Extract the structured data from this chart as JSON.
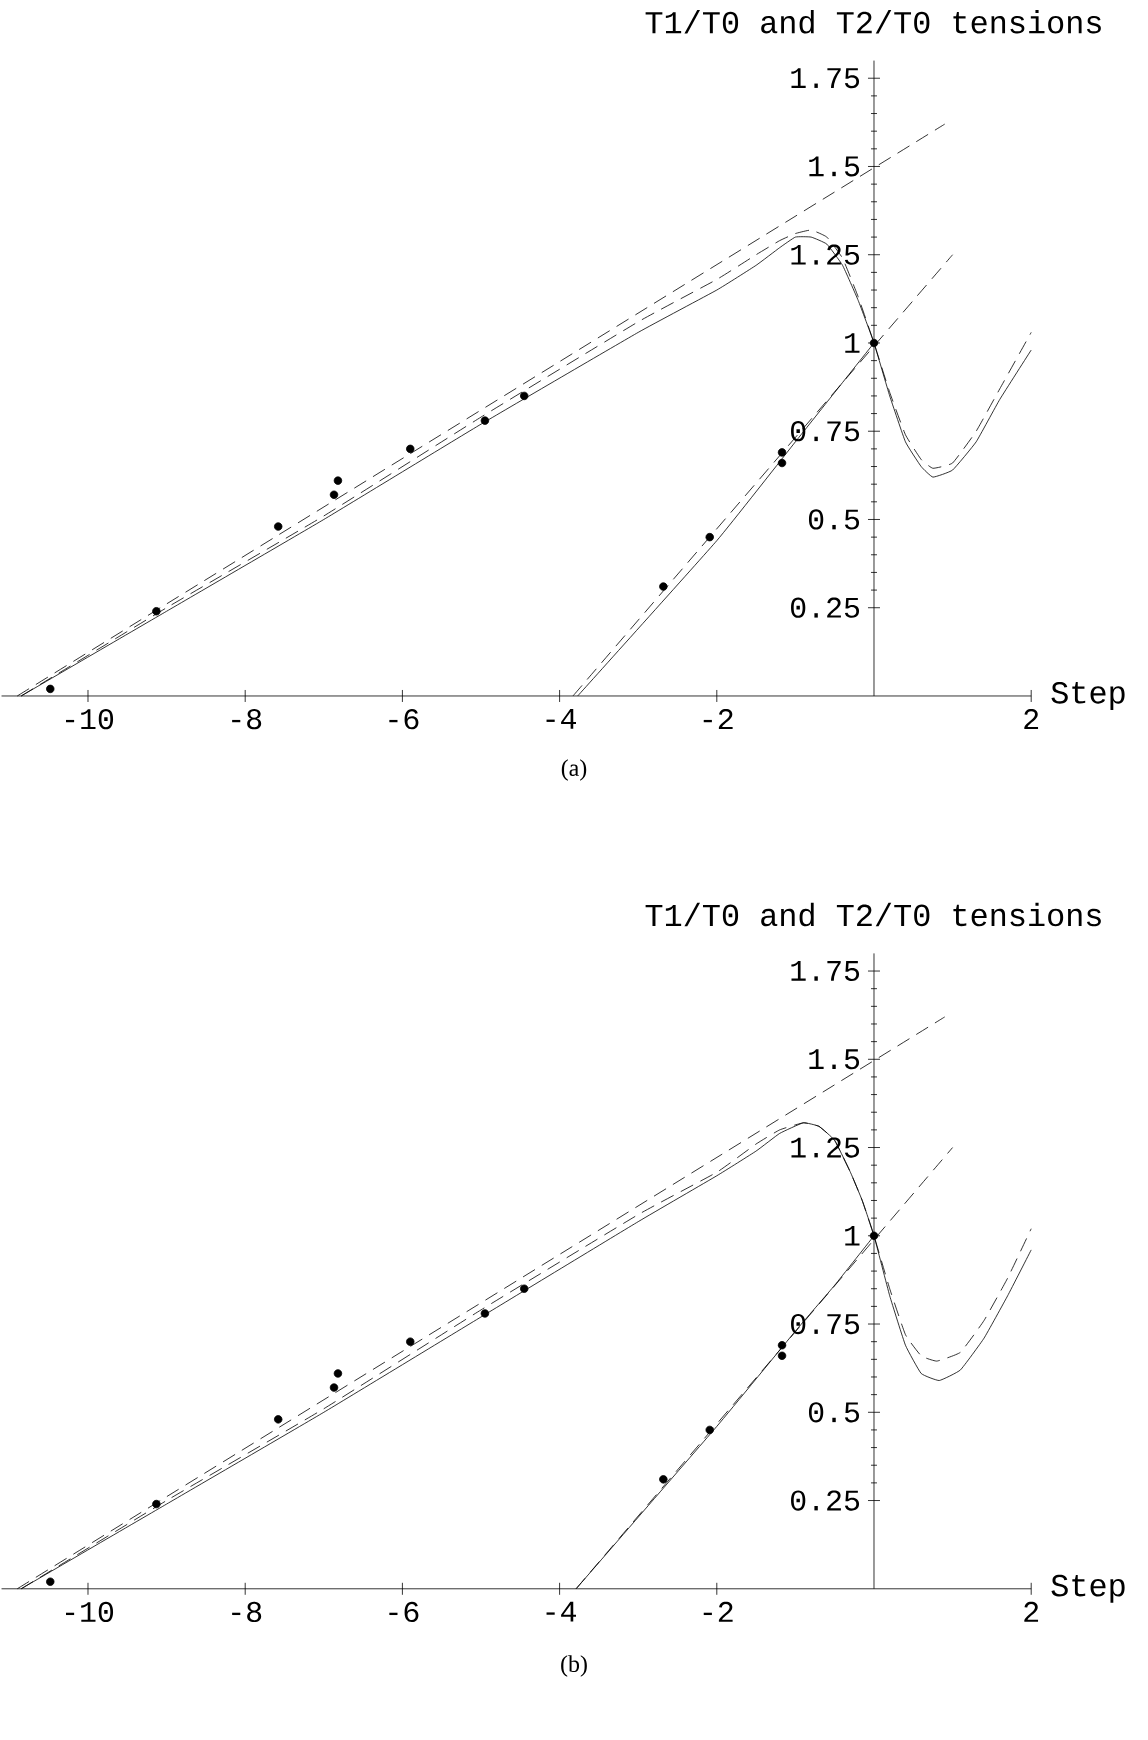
{
  "chart_data": [
    {
      "type": "line",
      "ylabel": "T1/T0 and T2/T0 tensions",
      "xlabel": "Step",
      "annotations": [
        "(a)"
      ],
      "xlim": [
        -11.1,
        2
      ],
      "ylim": [
        0,
        1.8
      ],
      "xticks": [
        -10,
        -8,
        -6,
        -4,
        -2,
        2
      ],
      "yticks": [
        0.25,
        0.5,
        0.75,
        1,
        1.25,
        1.5,
        1.75
      ],
      "grid": false,
      "series": [
        {
          "type": "line",
          "line_style": "solid",
          "marker": "none",
          "color": "#000000",
          "x": [
            -10.85,
            -9,
            -7,
            -5,
            -3,
            -2,
            -1.5,
            -1.2,
            -1.0,
            -0.8,
            -0.6,
            -0.4,
            -0.2,
            0,
            0.2,
            0.4,
            0.6,
            0.75,
            1.0,
            1.3,
            1.6,
            2
          ],
          "values": [
            0,
            0.24,
            0.5,
            0.77,
            1.03,
            1.15,
            1.22,
            1.27,
            1.3,
            1.3,
            1.28,
            1.22,
            1.12,
            1.0,
            0.85,
            0.72,
            0.65,
            0.62,
            0.64,
            0.72,
            0.84,
            0.98
          ]
        },
        {
          "type": "line",
          "line_style": "dashed",
          "marker": "none",
          "color": "#000000",
          "x": [
            -10.85,
            -9,
            -7,
            -5,
            -3,
            -2,
            -1.5,
            -1.2,
            -1.0,
            -0.8,
            -0.6,
            -0.4,
            -0.2,
            0,
            0.2,
            0.4,
            0.6,
            0.75,
            1.0,
            1.3,
            1.6,
            2
          ],
          "values": [
            0,
            0.25,
            0.51,
            0.79,
            1.06,
            1.18,
            1.25,
            1.29,
            1.31,
            1.32,
            1.3,
            1.24,
            1.13,
            1.0,
            0.86,
            0.74,
            0.67,
            0.645,
            0.66,
            0.75,
            0.87,
            1.03
          ]
        },
        {
          "type": "line",
          "line_style": "dashed",
          "marker": "none",
          "color": "#000000",
          "x": [
            -10.9,
            0.9
          ],
          "values": [
            0,
            1.62
          ]
        },
        {
          "type": "line",
          "line_style": "solid",
          "marker": "none",
          "color": "#000000",
          "x": [
            -3.77,
            -2,
            -1,
            -0.5,
            0
          ],
          "values": [
            0,
            0.44,
            0.72,
            0.86,
            1.0
          ]
        },
        {
          "type": "line",
          "line_style": "dashed",
          "marker": "none",
          "color": "#000000",
          "x": [
            -3.83,
            1.0
          ],
          "values": [
            0,
            1.25
          ]
        },
        {
          "type": "scatter",
          "marker": "circle",
          "color": "#000000",
          "x": [
            -10.48,
            -9.13,
            -7.58,
            -6.87,
            -6.82,
            -5.9,
            -4.95,
            -4.45,
            -2.68,
            -2.09,
            -1.17,
            -1.17,
            0
          ],
          "values": [
            0.02,
            0.24,
            0.48,
            0.57,
            0.61,
            0.7,
            0.78,
            0.85,
            0.31,
            0.45,
            0.66,
            0.69,
            1.0
          ]
        }
      ]
    },
    {
      "type": "line",
      "ylabel": "T1/T0 and T2/T0 tensions",
      "xlabel": "Step",
      "annotations": [
        "(b)"
      ],
      "xlim": [
        -11.1,
        2
      ],
      "ylim": [
        0,
        1.8
      ],
      "xticks": [
        -10,
        -8,
        -6,
        -4,
        -2,
        2
      ],
      "yticks": [
        0.25,
        0.5,
        0.75,
        1,
        1.25,
        1.5,
        1.75
      ],
      "grid": false,
      "series": [
        {
          "type": "line",
          "line_style": "solid",
          "marker": "none",
          "color": "#000000",
          "x": [
            -10.85,
            -9,
            -7,
            -5,
            -3,
            -2,
            -1.5,
            -1.2,
            -0.9,
            -0.7,
            -0.5,
            -0.3,
            -0.15,
            0,
            0.2,
            0.4,
            0.6,
            0.83,
            1.1,
            1.4,
            1.7,
            2
          ],
          "values": [
            0,
            0.24,
            0.5,
            0.77,
            1.04,
            1.17,
            1.24,
            1.29,
            1.32,
            1.31,
            1.27,
            1.18,
            1.1,
            1.0,
            0.83,
            0.69,
            0.61,
            0.59,
            0.62,
            0.71,
            0.83,
            0.96
          ]
        },
        {
          "type": "line",
          "line_style": "dashed",
          "marker": "none",
          "color": "#000000",
          "x": [
            -10.85,
            -9,
            -7,
            -5,
            -3,
            -2,
            -1.5,
            -1.2,
            -0.9,
            -0.7,
            -0.5,
            -0.3,
            -0.15,
            0,
            0.2,
            0.4,
            0.6,
            0.8,
            1.1,
            1.4,
            1.7,
            2
          ],
          "values": [
            0,
            0.25,
            0.51,
            0.79,
            1.06,
            1.18,
            1.26,
            1.3,
            1.32,
            1.31,
            1.27,
            1.18,
            1.1,
            1.0,
            0.85,
            0.72,
            0.66,
            0.645,
            0.67,
            0.76,
            0.88,
            1.02
          ]
        },
        {
          "type": "line",
          "line_style": "dashed",
          "marker": "none",
          "color": "#000000",
          "x": [
            -10.9,
            0.9
          ],
          "values": [
            0,
            1.62
          ]
        },
        {
          "type": "line",
          "line_style": "solid",
          "marker": "none",
          "color": "#000000",
          "x": [
            -3.79,
            -2,
            -1,
            -0.5,
            0
          ],
          "values": [
            0,
            0.46,
            0.73,
            0.86,
            1.0
          ]
        },
        {
          "type": "line",
          "line_style": "dashed",
          "marker": "none",
          "color": "#000000",
          "x": [
            -3.79,
            1.0
          ],
          "values": [
            0,
            1.25
          ]
        },
        {
          "type": "scatter",
          "marker": "circle",
          "color": "#000000",
          "x": [
            -10.48,
            -9.13,
            -7.58,
            -6.87,
            -6.82,
            -5.9,
            -4.95,
            -4.45,
            -2.68,
            -2.09,
            -1.17,
            -1.17,
            0
          ],
          "values": [
            0.02,
            0.24,
            0.48,
            0.57,
            0.61,
            0.7,
            0.78,
            0.85,
            0.31,
            0.45,
            0.66,
            0.69,
            1.0
          ]
        }
      ]
    }
  ]
}
